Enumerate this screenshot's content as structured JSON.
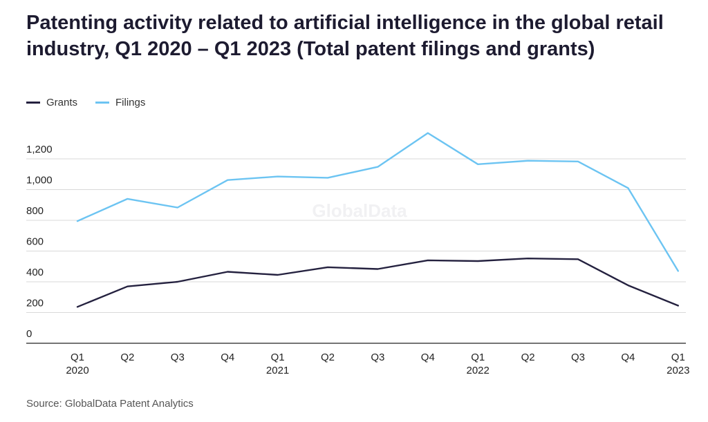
{
  "title": "Patenting activity related to artificial intelligence in the global retail industry, Q1 2020 – Q1 2023 (Total patent filings and grants)",
  "source": "Source: GlobalData Patent Analytics",
  "watermark": "GlobalData",
  "chart_data": {
    "type": "line",
    "title": "Patenting activity related to artificial intelligence in the global retail industry, Q1 2020 – Q1 2023 (Total patent filings and grants)",
    "x_ticks": [
      [
        "Q1",
        "2020"
      ],
      [
        "Q2",
        ""
      ],
      [
        "Q3",
        ""
      ],
      [
        "Q4",
        ""
      ],
      [
        "Q1",
        "2021"
      ],
      [
        "Q2",
        ""
      ],
      [
        "Q3",
        ""
      ],
      [
        "Q4",
        ""
      ],
      [
        "Q1",
        "2022"
      ],
      [
        "Q2",
        ""
      ],
      [
        "Q3",
        ""
      ],
      [
        "Q4",
        ""
      ],
      [
        "Q1",
        "2023"
      ]
    ],
    "y_ticks": [
      "0",
      "200",
      "400",
      "600",
      "800",
      "1,000",
      "1,200"
    ],
    "ylim": [
      0,
      1200
    ],
    "grid": true,
    "legend_position": "top-left",
    "series": [
      {
        "name": "Grants",
        "color": "#24213f",
        "values": [
          237,
          370,
          400,
          465,
          445,
          495,
          483,
          540,
          535,
          552,
          547,
          377,
          245
        ]
      },
      {
        "name": "Filings",
        "color": "#6cc4f2",
        "values": [
          795,
          940,
          883,
          1062,
          1085,
          1077,
          1148,
          1368,
          1165,
          1188,
          1183,
          1010,
          470
        ]
      }
    ]
  }
}
